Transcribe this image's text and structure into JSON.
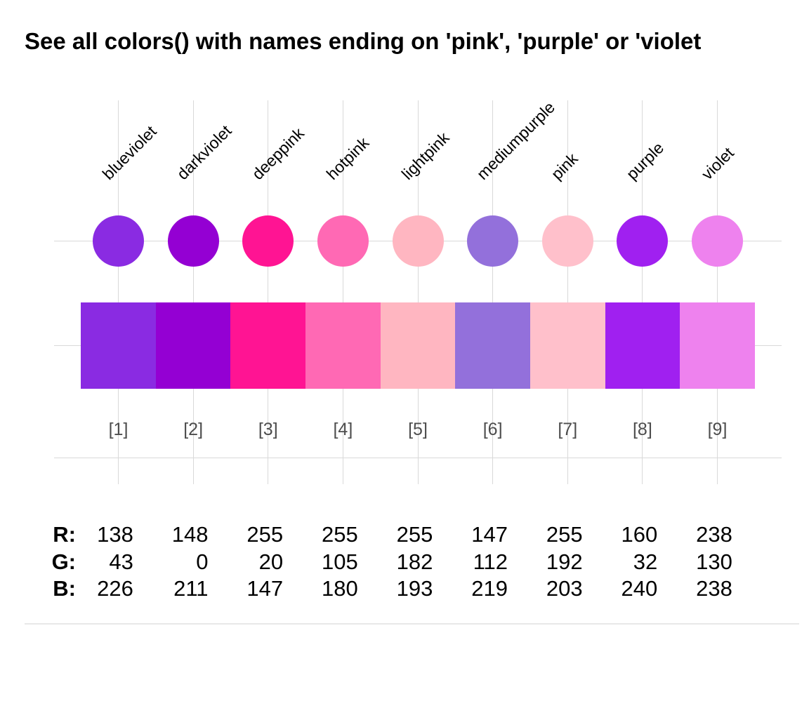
{
  "title": "See all colors() with names ending on 'pink', 'purple' or 'violet",
  "colors": {
    "gridline": "#d9d9d9",
    "index_label": "#4d4d4d",
    "separator": "#e8e8e8",
    "text": "#000000"
  },
  "chart_data": {
    "type": "table",
    "subtype": "color-palette-preview",
    "title": "See all colors() with names ending on 'pink', 'purple' or 'violet",
    "grid": true,
    "legend_position": "none",
    "categories": [
      "blueviolet",
      "darkviolet",
      "deeppink",
      "hotpink",
      "lightpink",
      "mediumpurple",
      "pink",
      "purple",
      "violet"
    ],
    "index_labels": [
      "[1]",
      "[2]",
      "[3]",
      "[4]",
      "[5]",
      "[6]",
      "[7]",
      "[8]",
      "[9]"
    ],
    "swatches": [
      {
        "name": "blueviolet",
        "hex": "#8A2BE2",
        "r": 138,
        "g": 43,
        "b": 226
      },
      {
        "name": "darkviolet",
        "hex": "#9400D3",
        "r": 148,
        "g": 0,
        "b": 211
      },
      {
        "name": "deeppink",
        "hex": "#FF1493",
        "r": 255,
        "g": 20,
        "b": 147
      },
      {
        "name": "hotpink",
        "hex": "#FF69B4",
        "r": 255,
        "g": 105,
        "b": 180
      },
      {
        "name": "lightpink",
        "hex": "#FFB6C1",
        "r": 255,
        "g": 182,
        "b": 193
      },
      {
        "name": "mediumpurple",
        "hex": "#9370DB",
        "r": 147,
        "g": 112,
        "b": 219
      },
      {
        "name": "pink",
        "hex": "#FFC0CB",
        "r": 255,
        "g": 192,
        "b": 203
      },
      {
        "name": "purple",
        "hex": "#A020F0",
        "r": 160,
        "g": 32,
        "b": 240
      },
      {
        "name": "violet",
        "hex": "#EE82EE",
        "r": 238,
        "g": 130,
        "b": 238
      }
    ],
    "rgb_rows": [
      {
        "label": "R:",
        "values": [
          "138",
          "148",
          "255",
          "255",
          "255",
          "147",
          "255",
          "160",
          "238"
        ]
      },
      {
        "label": "G:",
        "values": [
          "43",
          "0",
          "20",
          "105",
          "182",
          "112",
          "192",
          "32",
          "130"
        ]
      },
      {
        "label": "B:",
        "values": [
          "226",
          "211",
          "147",
          "180",
          "193",
          "219",
          "203",
          "240",
          "238"
        ]
      }
    ]
  }
}
